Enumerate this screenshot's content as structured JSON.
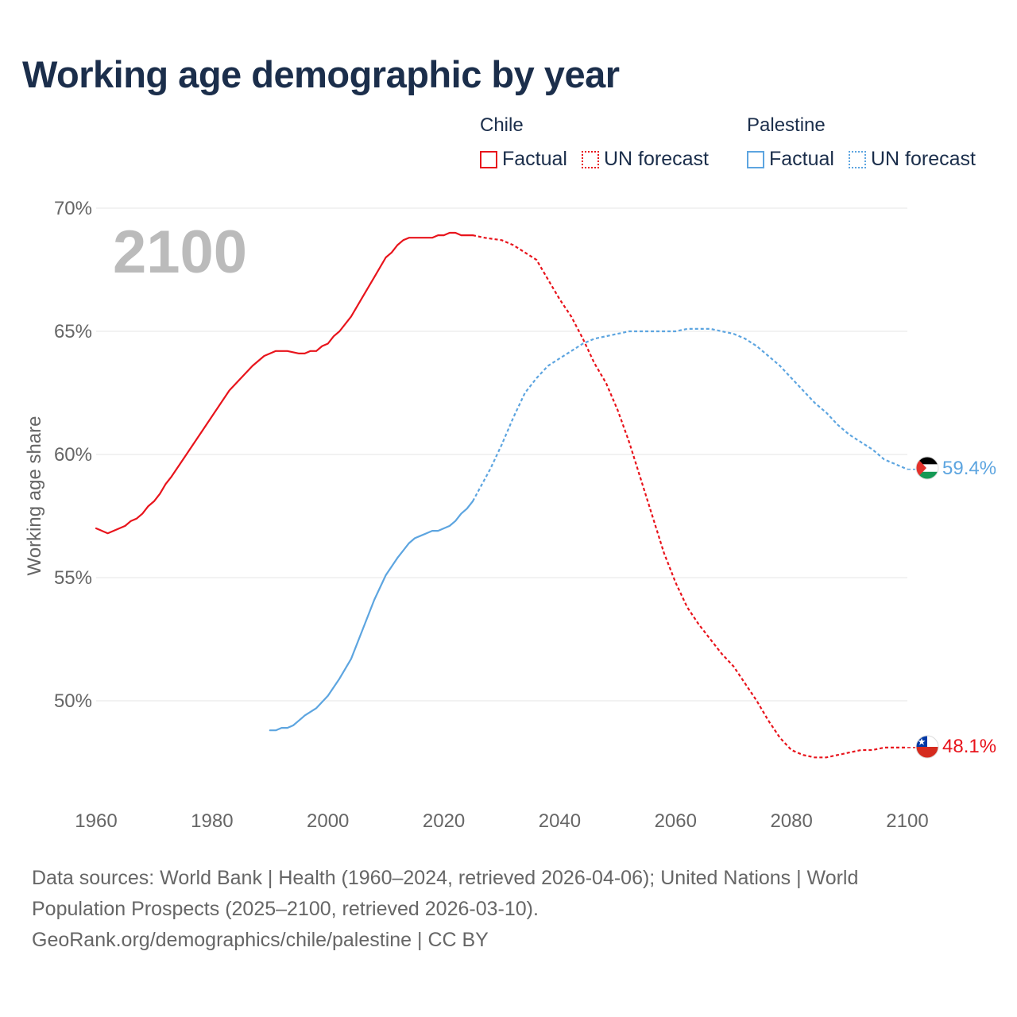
{
  "title": "Working age demographic by year",
  "legend": {
    "groups": [
      {
        "name": "Chile",
        "factual_label": "Factual",
        "forecast_label": "UN forecast"
      },
      {
        "name": "Palestine",
        "factual_label": "Factual",
        "forecast_label": "UN forecast"
      }
    ]
  },
  "colors": {
    "chile": "#e8141c",
    "palestine": "#5da5e0",
    "grid": "#e6e6e6",
    "axis_text": "#666666",
    "year_watermark": "#bbbbbb"
  },
  "chart_data": {
    "type": "line",
    "title": "Working age demographic by year",
    "xlabel": "",
    "ylabel": "Working age share",
    "xlim": [
      1960,
      2100
    ],
    "ylim": [
      46,
      71
    ],
    "yticks": [
      50,
      55,
      60,
      65,
      70
    ],
    "ytick_labels": [
      "50%",
      "55%",
      "60%",
      "65%",
      "70%"
    ],
    "xticks": [
      1960,
      1980,
      2000,
      2020,
      2040,
      2060,
      2080,
      2100
    ],
    "xtick_labels": [
      "1960",
      "1980",
      "2000",
      "2020",
      "2040",
      "2060",
      "2080",
      "2100"
    ],
    "year_label": "2100",
    "series": [
      {
        "name": "Chile",
        "factual": [
          [
            1960,
            57.0
          ],
          [
            1962,
            56.8
          ],
          [
            1964,
            57.0
          ],
          [
            1965,
            57.1
          ],
          [
            1966,
            57.3
          ],
          [
            1967,
            57.4
          ],
          [
            1968,
            57.6
          ],
          [
            1969,
            57.9
          ],
          [
            1970,
            58.1
          ],
          [
            1971,
            58.4
          ],
          [
            1972,
            58.8
          ],
          [
            1973,
            59.1
          ],
          [
            1975,
            59.8
          ],
          [
            1977,
            60.5
          ],
          [
            1979,
            61.2
          ],
          [
            1981,
            61.9
          ],
          [
            1983,
            62.6
          ],
          [
            1985,
            63.1
          ],
          [
            1987,
            63.6
          ],
          [
            1989,
            64.0
          ],
          [
            1991,
            64.2
          ],
          [
            1993,
            64.2
          ],
          [
            1995,
            64.1
          ],
          [
            1996,
            64.1
          ],
          [
            1997,
            64.2
          ],
          [
            1998,
            64.2
          ],
          [
            1999,
            64.4
          ],
          [
            2000,
            64.5
          ],
          [
            2001,
            64.8
          ],
          [
            2002,
            65.0
          ],
          [
            2004,
            65.6
          ],
          [
            2006,
            66.4
          ],
          [
            2008,
            67.2
          ],
          [
            2010,
            68.0
          ],
          [
            2011,
            68.2
          ],
          [
            2012,
            68.5
          ],
          [
            2013,
            68.7
          ],
          [
            2014,
            68.8
          ],
          [
            2016,
            68.8
          ],
          [
            2018,
            68.8
          ],
          [
            2019,
            68.9
          ],
          [
            2020,
            68.9
          ],
          [
            2021,
            69.0
          ],
          [
            2022,
            69.0
          ],
          [
            2023,
            68.9
          ],
          [
            2025,
            68.9
          ]
        ],
        "forecast": [
          [
            2025,
            68.9
          ],
          [
            2027,
            68.8
          ],
          [
            2030,
            68.7
          ],
          [
            2032,
            68.5
          ],
          [
            2034,
            68.2
          ],
          [
            2036,
            67.9
          ],
          [
            2038,
            67.1
          ],
          [
            2040,
            66.3
          ],
          [
            2042,
            65.6
          ],
          [
            2044,
            64.7
          ],
          [
            2046,
            63.7
          ],
          [
            2048,
            62.9
          ],
          [
            2050,
            61.8
          ],
          [
            2052,
            60.5
          ],
          [
            2054,
            59.0
          ],
          [
            2056,
            57.5
          ],
          [
            2058,
            56.0
          ],
          [
            2060,
            54.8
          ],
          [
            2062,
            53.8
          ],
          [
            2064,
            53.1
          ],
          [
            2066,
            52.5
          ],
          [
            2068,
            51.9
          ],
          [
            2070,
            51.4
          ],
          [
            2072,
            50.7
          ],
          [
            2074,
            50.0
          ],
          [
            2076,
            49.2
          ],
          [
            2078,
            48.5
          ],
          [
            2080,
            48.0
          ],
          [
            2082,
            47.8
          ],
          [
            2084,
            47.7
          ],
          [
            2086,
            47.7
          ],
          [
            2088,
            47.8
          ],
          [
            2090,
            47.9
          ],
          [
            2092,
            48.0
          ],
          [
            2094,
            48.0
          ],
          [
            2096,
            48.1
          ],
          [
            2098,
            48.1
          ],
          [
            2100,
            48.1
          ]
        ],
        "end_label": "48.1%"
      },
      {
        "name": "Palestine",
        "factual": [
          [
            1990,
            48.8
          ],
          [
            1991,
            48.8
          ],
          [
            1992,
            48.9
          ],
          [
            1993,
            48.9
          ],
          [
            1994,
            49.0
          ],
          [
            1995,
            49.2
          ],
          [
            1996,
            49.4
          ],
          [
            1998,
            49.7
          ],
          [
            2000,
            50.2
          ],
          [
            2002,
            50.9
          ],
          [
            2004,
            51.7
          ],
          [
            2006,
            52.9
          ],
          [
            2008,
            54.1
          ],
          [
            2010,
            55.1
          ],
          [
            2012,
            55.8
          ],
          [
            2014,
            56.4
          ],
          [
            2015,
            56.6
          ],
          [
            2016,
            56.7
          ],
          [
            2017,
            56.8
          ],
          [
            2018,
            56.9
          ],
          [
            2019,
            56.9
          ],
          [
            2020,
            57.0
          ],
          [
            2021,
            57.1
          ],
          [
            2022,
            57.3
          ],
          [
            2023,
            57.6
          ],
          [
            2024,
            57.8
          ],
          [
            2025,
            58.1
          ]
        ],
        "forecast": [
          [
            2025,
            58.1
          ],
          [
            2028,
            59.4
          ],
          [
            2030,
            60.4
          ],
          [
            2032,
            61.5
          ],
          [
            2034,
            62.5
          ],
          [
            2036,
            63.1
          ],
          [
            2038,
            63.6
          ],
          [
            2040,
            63.9
          ],
          [
            2042,
            64.2
          ],
          [
            2044,
            64.5
          ],
          [
            2046,
            64.7
          ],
          [
            2048,
            64.8
          ],
          [
            2050,
            64.9
          ],
          [
            2052,
            65.0
          ],
          [
            2054,
            65.0
          ],
          [
            2056,
            65.0
          ],
          [
            2058,
            65.0
          ],
          [
            2060,
            65.0
          ],
          [
            2062,
            65.1
          ],
          [
            2064,
            65.1
          ],
          [
            2066,
            65.1
          ],
          [
            2068,
            65.0
          ],
          [
            2070,
            64.9
          ],
          [
            2072,
            64.7
          ],
          [
            2074,
            64.4
          ],
          [
            2076,
            64.0
          ],
          [
            2078,
            63.6
          ],
          [
            2080,
            63.1
          ],
          [
            2082,
            62.6
          ],
          [
            2084,
            62.1
          ],
          [
            2086,
            61.7
          ],
          [
            2088,
            61.2
          ],
          [
            2090,
            60.8
          ],
          [
            2092,
            60.5
          ],
          [
            2094,
            60.2
          ],
          [
            2096,
            59.8
          ],
          [
            2098,
            59.6
          ],
          [
            2100,
            59.4
          ]
        ],
        "end_label": "59.4%"
      }
    ]
  },
  "footer": {
    "sources": "Data sources: World Bank | Health (1960–2024, retrieved 2026-04-06); United Nations | World Population Prospects (2025–2100, retrieved 2026-03-10).",
    "credit": "GeoRank.org/demographics/chile/palestine | CC BY"
  }
}
